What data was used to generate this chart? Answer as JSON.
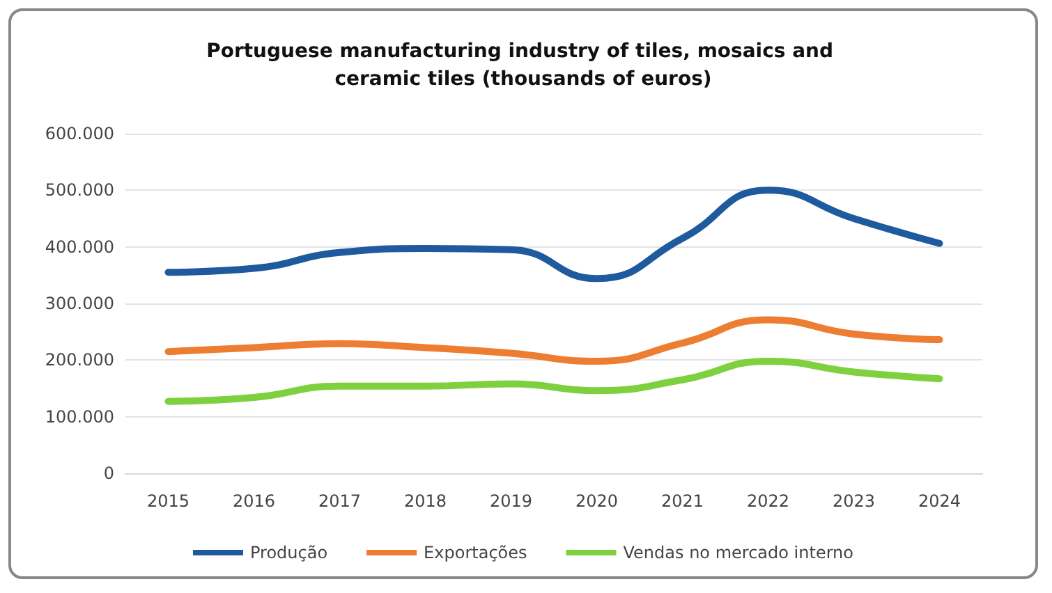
{
  "chart_data": {
    "type": "line",
    "title": "Portuguese manufacturing industry of tiles, mosaics and ceramic tiles (thousands of euros)",
    "categories": [
      "2015",
      "2016",
      "2017",
      "2018",
      "2019",
      "2020",
      "2021",
      "2022",
      "2023",
      "2024"
    ],
    "series": [
      {
        "name": "Produção",
        "color": "#1f5a9e",
        "values": [
          355000,
          362000,
          390000,
          397000,
          395000,
          344000,
          415000,
          500000,
          450000,
          406000
        ]
      },
      {
        "name": "Exportações",
        "color": "#ed7d31",
        "values": [
          215000,
          222000,
          229000,
          222000,
          212000,
          198000,
          230000,
          271000,
          246000,
          236000
        ]
      },
      {
        "name": "Vendas no mercado interno",
        "color": "#7ed03f",
        "values": [
          127000,
          134000,
          154000,
          154000,
          158000,
          146000,
          165000,
          198000,
          179000,
          167000
        ]
      }
    ],
    "ylim": [
      0,
      600000
    ],
    "yticks": [
      {
        "value": 0,
        "label": "0"
      },
      {
        "value": 100000,
        "label": "100.000"
      },
      {
        "value": 200000,
        "label": "200.000"
      },
      {
        "value": 300000,
        "label": "300.000"
      },
      {
        "value": 400000,
        "label": "400.000"
      },
      {
        "value": 500000,
        "label": "500.000"
      },
      {
        "value": 600000,
        "label": "600.000"
      }
    ],
    "grid": "y",
    "legend": "bottom",
    "marker": "none",
    "line_style": "solid"
  }
}
